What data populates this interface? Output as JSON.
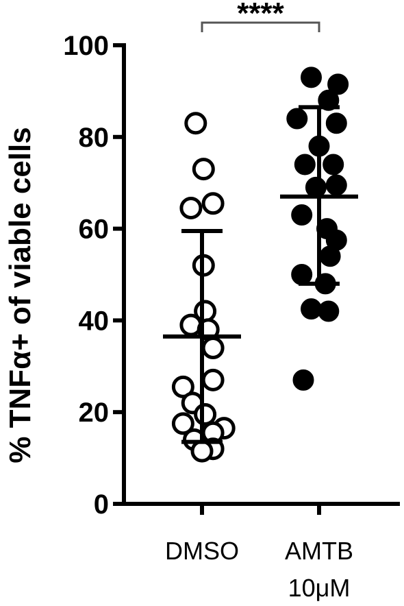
{
  "chart_data": {
    "type": "scatter",
    "ylabel": "% TNFα+ of viable cells",
    "ylim": [
      0,
      100
    ],
    "yticks": [
      0,
      20,
      40,
      60,
      80,
      100
    ],
    "categories": [
      {
        "line1": "DMSO",
        "line2": ""
      },
      {
        "line1": "AMTB",
        "line2": "10μM"
      }
    ],
    "series": [
      {
        "category_index": 0,
        "marker": "open-circle",
        "mean": 36.5,
        "sd_low": 13.5,
        "sd_high": 59.5,
        "points": [
          {
            "value": 83,
            "offset": -0.2
          },
          {
            "value": 73,
            "offset": 0.05
          },
          {
            "value": 65.5,
            "offset": 0.35
          },
          {
            "value": 64.5,
            "offset": -0.35
          },
          {
            "value": 52,
            "offset": 0.05
          },
          {
            "value": 42,
            "offset": 0.1
          },
          {
            "value": 39,
            "offset": -0.35
          },
          {
            "value": 38,
            "offset": 0.2
          },
          {
            "value": 34,
            "offset": 0.35
          },
          {
            "value": 27,
            "offset": 0.35
          },
          {
            "value": 25.5,
            "offset": -0.6
          },
          {
            "value": 22,
            "offset": -0.3
          },
          {
            "value": 19.5,
            "offset": 0.1
          },
          {
            "value": 17.5,
            "offset": -0.6
          },
          {
            "value": 16.5,
            "offset": 0.7
          },
          {
            "value": 15.5,
            "offset": 0.35
          },
          {
            "value": 14,
            "offset": -0.25
          },
          {
            "value": 12,
            "offset": 0.35
          },
          {
            "value": 11.5,
            "offset": 0.0
          }
        ]
      },
      {
        "category_index": 1,
        "marker": "filled-circle",
        "mean": 67,
        "sd_low": 48,
        "sd_high": 86.5,
        "points": [
          {
            "value": 93,
            "offset": -0.25
          },
          {
            "value": 91.5,
            "offset": 0.6
          },
          {
            "value": 88,
            "offset": 0.3
          },
          {
            "value": 84,
            "offset": -0.7
          },
          {
            "value": 83,
            "offset": 0.55
          },
          {
            "value": 78,
            "offset": 0.0
          },
          {
            "value": 74,
            "offset": -0.45
          },
          {
            "value": 74,
            "offset": 0.45
          },
          {
            "value": 69.5,
            "offset": 0.55
          },
          {
            "value": 69,
            "offset": -0.1
          },
          {
            "value": 63,
            "offset": -0.55
          },
          {
            "value": 60,
            "offset": 0.25
          },
          {
            "value": 57.5,
            "offset": 0.55
          },
          {
            "value": 54,
            "offset": 0.35
          },
          {
            "value": 50,
            "offset": -0.55
          },
          {
            "value": 48,
            "offset": 0.2
          },
          {
            "value": 42.5,
            "offset": -0.25
          },
          {
            "value": 42,
            "offset": 0.3
          },
          {
            "value": 27,
            "offset": -0.5
          }
        ]
      }
    ],
    "significance": {
      "label": "****",
      "from": 0,
      "to": 1
    }
  }
}
